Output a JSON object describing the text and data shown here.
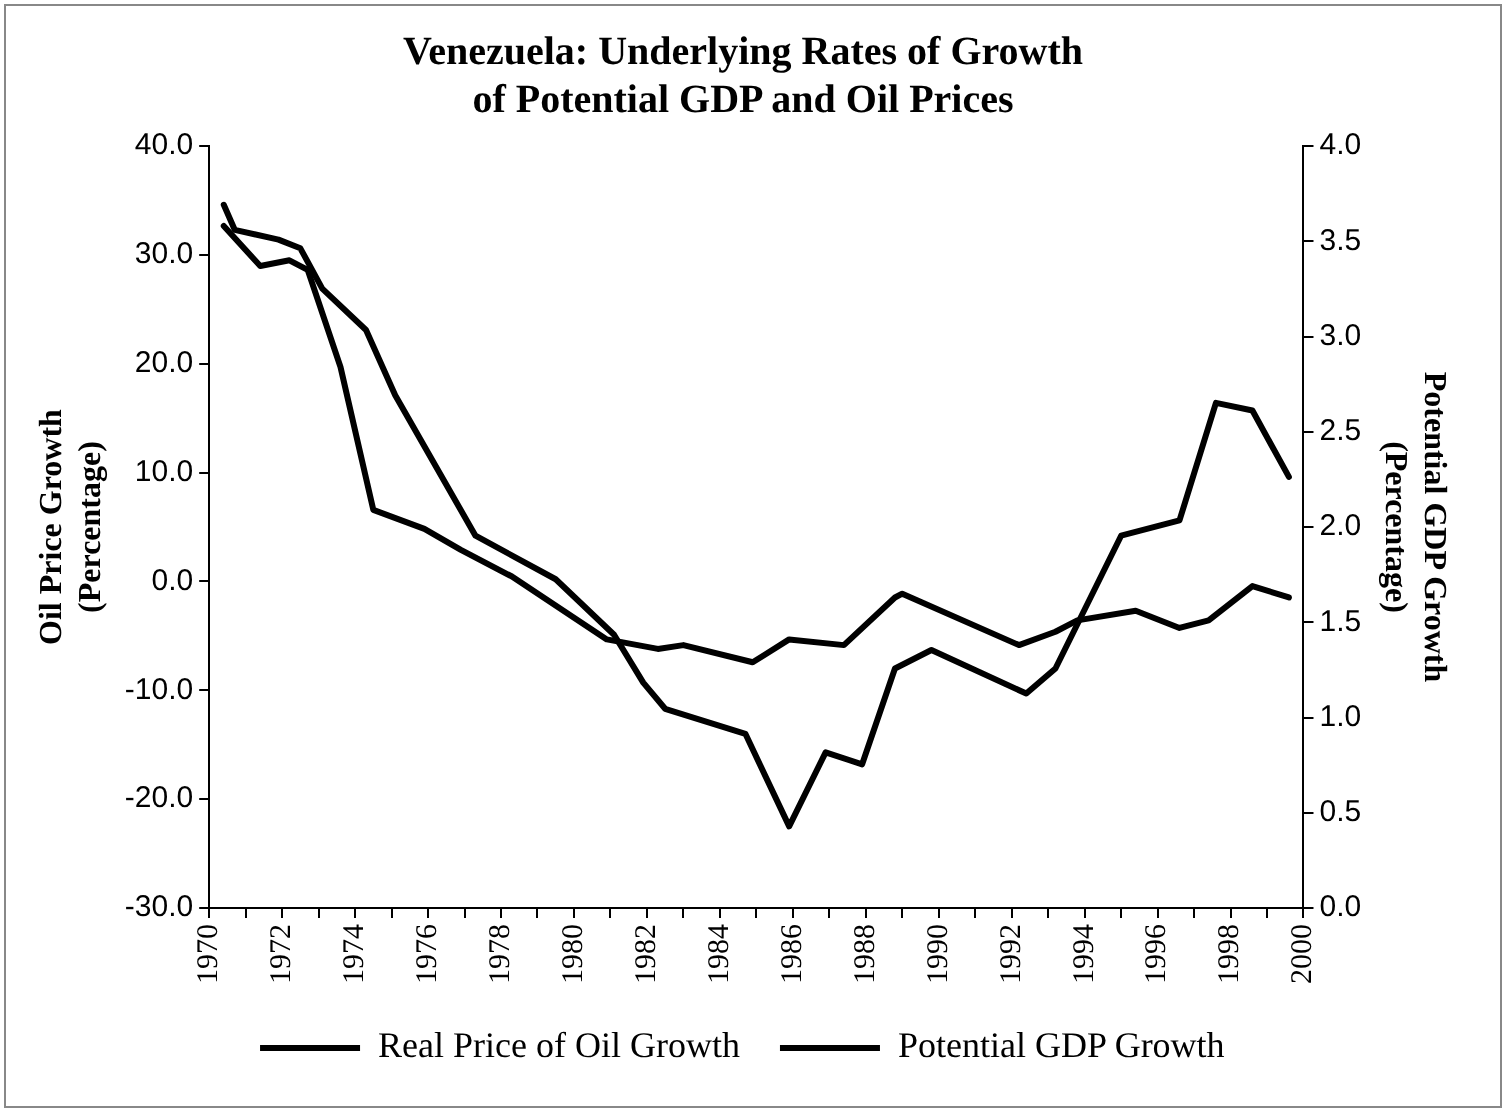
{
  "chart_data": {
    "type": "line",
    "title": "Venezuela: Underlying Rates of Growth\nof Potential GDP and Oil Prices",
    "ylabel": "Oil Price Growth\n(Percentage)",
    "y2label": "Potential GDP Growth\n(Percentage)",
    "xlim": [
      1970,
      2000
    ],
    "xticks": [
      1970,
      {
        "value": 1971,
        "label": null
      },
      1972,
      {
        "value": 1973,
        "label": null
      },
      1974,
      {
        "value": 1975,
        "label": null
      },
      1976,
      {
        "value": 1977,
        "label": null
      },
      1978,
      {
        "value": 1979,
        "label": null
      },
      1980,
      {
        "value": 1981,
        "label": null
      },
      1982,
      {
        "value": 1983,
        "label": null
      },
      1984,
      {
        "value": 1985,
        "label": null
      },
      1986,
      {
        "value": 1987,
        "label": null
      },
      1988,
      {
        "value": 1989,
        "label": null
      },
      1990,
      {
        "value": 1991,
        "label": null
      },
      1992,
      {
        "value": 1993,
        "label": null
      },
      1994,
      {
        "value": 1995,
        "label": null
      },
      1996,
      {
        "value": 1997,
        "label": null
      },
      1998,
      {
        "value": 1999,
        "label": null
      },
      2000
    ],
    "ylim": [
      -30,
      40
    ],
    "yticks": [
      {
        "value": -30,
        "label": "-30.0"
      },
      {
        "value": -20,
        "label": "-20.0"
      },
      {
        "value": -10,
        "label": "-10.0"
      },
      {
        "value": 0,
        "label": "0.0"
      },
      {
        "value": 10,
        "label": "10.0"
      },
      {
        "value": 20,
        "label": "20.0"
      },
      {
        "value": 30,
        "label": "30.0"
      },
      {
        "value": 40,
        "label": "40.0"
      }
    ],
    "y2lim": [
      0,
      4
    ],
    "y2ticks": [
      {
        "value": 0,
        "label": "0.0"
      },
      0.5,
      {
        "value": 1,
        "label": "1.0"
      },
      1.5,
      {
        "value": 2,
        "label": "2.0"
      },
      2.5,
      {
        "value": 3,
        "label": "3.0"
      },
      3.5,
      {
        "value": 4,
        "label": "4.0"
      }
    ],
    "grid": false,
    "legend": "bottom",
    "marker": "none",
    "line_style": "solid",
    "series": [
      {
        "name": "Real Price of Oil Growth",
        "color": "#000000",
        "x": [
          1970.4,
          1970.7,
          1971.9,
          1972.5,
          1973.1,
          1974.3,
          1975.1,
          1977.3,
          1979.5,
          1981.1,
          1981.9,
          1982.5,
          1984.7,
          1985.9,
          1986.9,
          1987.9,
          1988.8,
          1989.8,
          1992.4,
          1993.2,
          1995.0,
          1996.6,
          1997.6,
          1998.6,
          1999.6
        ],
        "values": [
          34.6,
          32.3,
          31.4,
          30.6,
          26.9,
          23.1,
          17.1,
          4.2,
          0.2,
          -4.9,
          -9.3,
          -11.7,
          -14.0,
          -22.5,
          -15.7,
          -16.8,
          -8.0,
          -6.3,
          -10.3,
          -8.0,
          4.2,
          5.6,
          16.4,
          15.7,
          9.6
        ]
      },
      {
        "name": "Potential GDP Growth",
        "color": "#000000",
        "axis": "y2",
        "x": [
          1970.4,
          1971.4,
          1972.2,
          1972.7,
          1973.6,
          1974.5,
          1975.9,
          1976.9,
          1978.3,
          1980.9,
          1982.3,
          1983.0,
          1984.9,
          1985.9,
          1987.4,
          1988.8,
          1989.0,
          1992.2,
          1993.2,
          1993.8,
          1995.4,
          1996.6,
          1997.4,
          1998.6,
          1999.6
        ],
        "values": [
          3.58,
          3.37,
          3.4,
          3.35,
          2.84,
          2.09,
          1.99,
          1.88,
          1.74,
          1.41,
          1.36,
          1.38,
          1.29,
          1.41,
          1.38,
          1.63,
          1.65,
          1.38,
          1.45,
          1.51,
          1.56,
          1.47,
          1.51,
          1.69,
          1.63
        ]
      }
    ]
  }
}
